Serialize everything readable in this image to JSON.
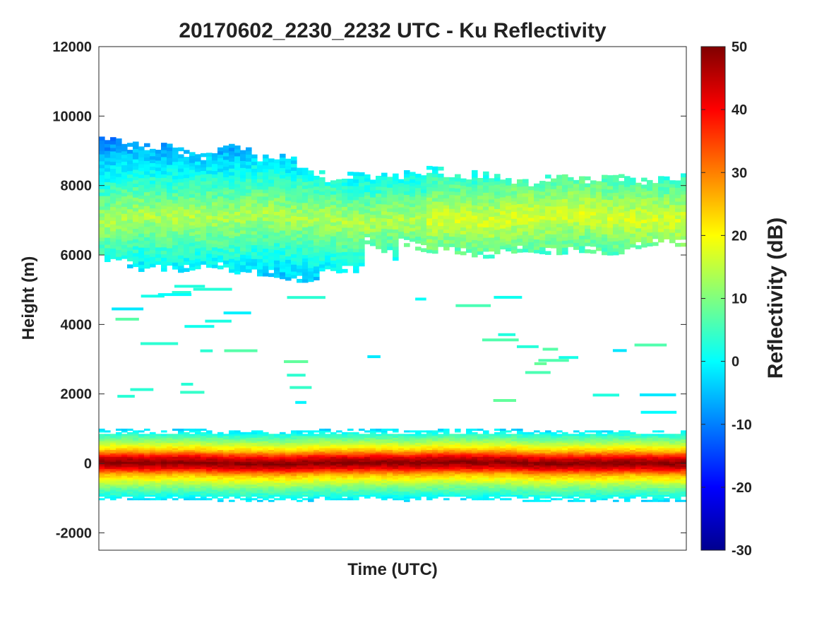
{
  "chart_data": {
    "type": "heatmap",
    "title": "20170602_2230_2232 UTC - Ku Reflectivity",
    "xlabel": "Time (UTC)",
    "ylabel": "Height (m)",
    "ylim": [
      -2500,
      12000
    ],
    "yticks": [
      -2000,
      0,
      2000,
      4000,
      6000,
      8000,
      10000,
      12000
    ],
    "xticks": [],
    "colorbar": {
      "label": "Reflectivity (dB)",
      "range": [
        -30,
        50
      ],
      "ticks": [
        -30,
        -20,
        -10,
        0,
        10,
        20,
        30,
        40,
        50
      ],
      "colormap": "jet"
    },
    "layers": [
      {
        "name_hidden": true,
        "kind": "surface",
        "height_center": 0,
        "profile": [
          [
            -1100,
            -3
          ],
          [
            -700,
            10
          ],
          [
            -350,
            25
          ],
          [
            -150,
            42
          ],
          [
            0,
            50
          ],
          [
            150,
            42
          ],
          [
            350,
            25
          ],
          [
            650,
            10
          ],
          [
            950,
            -3
          ]
        ]
      },
      {
        "name_hidden": true,
        "kind": "cloud",
        "height_bottom": 5600,
        "height_top": 9500,
        "peak_height": 7000,
        "peak_value": 14,
        "edge_value": -5
      }
    ]
  }
}
